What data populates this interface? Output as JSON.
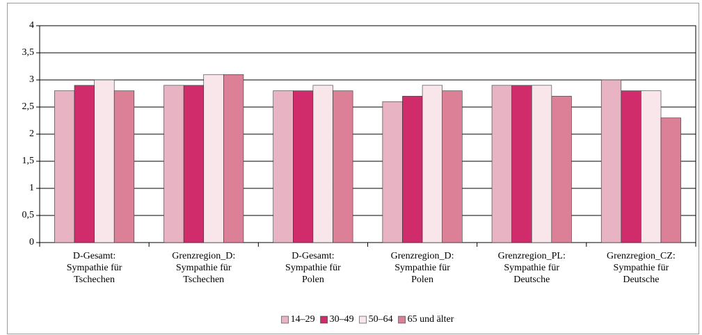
{
  "chart_data": {
    "type": "bar",
    "categories": [
      [
        "D-Gesamt:",
        "Sympathie für",
        "Tschechen"
      ],
      [
        "Grenzregion_D:",
        "Sympathie für",
        "Tschechen"
      ],
      [
        "D-Gesamt:",
        "Sympathie für",
        "Polen"
      ],
      [
        "Grenzregion_D:",
        "Sympathie für",
        "Polen"
      ],
      [
        "Grenzregion_PL:",
        "Sympathie für",
        "Deutsche"
      ],
      [
        "Grenzregion_CZ:",
        "Sympathie für",
        "Deutsche"
      ]
    ],
    "series": [
      {
        "name": "14–29",
        "color": "#e8b4c4",
        "values": [
          2.8,
          2.9,
          2.8,
          2.6,
          2.9,
          3.0
        ]
      },
      {
        "name": "30–49",
        "color": "#d02c6c",
        "values": [
          2.9,
          2.9,
          2.8,
          2.7,
          2.9,
          2.8
        ]
      },
      {
        "name": "50–64",
        "color": "#f8e6ea",
        "values": [
          3.0,
          3.1,
          2.9,
          2.9,
          2.9,
          2.8
        ]
      },
      {
        "name": "65 und älter",
        "color": "#dc8098",
        "values": [
          2.8,
          3.1,
          2.8,
          2.8,
          2.7,
          2.3
        ]
      }
    ],
    "ylim": [
      0,
      4
    ],
    "yticks": [
      0,
      {
        "value": 0.5,
        "label": "0,5"
      },
      1,
      {
        "value": 1.5,
        "label": "1,5"
      },
      2,
      {
        "value": 2.5,
        "label": "2,5"
      },
      3,
      {
        "value": 3.5,
        "label": "3,5"
      },
      4
    ],
    "grid": true,
    "legend": "bottom"
  }
}
